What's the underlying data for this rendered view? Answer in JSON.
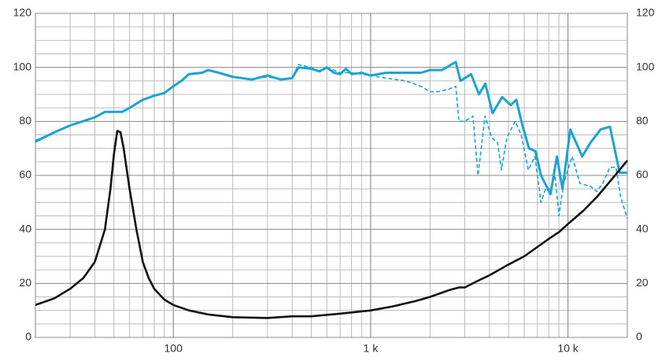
{
  "chart_data": {
    "type": "line",
    "xscale": "log",
    "grid": true,
    "xlim": [
      20,
      20000
    ],
    "xticks": [
      100,
      {
        "value": 1000,
        "label": "1 k"
      },
      {
        "value": 10000,
        "label": "10 k"
      }
    ],
    "ylim": [
      0,
      120
    ],
    "yticks": [
      0,
      20,
      40,
      60,
      80,
      100,
      120
    ],
    "y2lim": [
      0,
      120
    ],
    "y2ticks": [
      0,
      20,
      40,
      60,
      80,
      100,
      120
    ],
    "series": [
      {
        "color": "#1aa3d3",
        "style": "solid",
        "x": [
          20,
          25,
          30,
          40,
          45,
          50,
          55,
          60,
          70,
          80,
          90,
          100,
          110,
          120,
          140,
          150,
          170,
          200,
          250,
          300,
          350,
          400,
          430,
          500,
          550,
          600,
          650,
          700,
          750,
          800,
          900,
          1000,
          1200,
          1500,
          1800,
          2000,
          2300,
          2700,
          2850,
          3230,
          3540,
          3810,
          4150,
          4640,
          5130,
          5470,
          5900,
          6350,
          6840,
          7300,
          8150,
          8790,
          9380,
          10280,
          11800,
          12960,
          14630,
          16330,
          18280,
          20000
        ],
        "values": [
          72.5,
          76,
          78.5,
          81.5,
          83.5,
          83.5,
          83.5,
          85,
          88,
          89.5,
          90.5,
          93,
          95,
          97.5,
          98,
          99,
          98,
          96.5,
          95.5,
          97,
          95.5,
          96,
          100,
          99.5,
          98.5,
          100,
          98,
          97.5,
          99.5,
          97.5,
          98,
          97,
          98,
          98,
          98,
          99,
          99,
          102,
          95,
          97.5,
          90,
          94,
          83,
          89,
          86,
          88,
          78,
          70,
          69,
          60,
          53,
          67,
          55,
          77,
          67,
          72,
          77,
          78,
          61,
          61
        ]
      },
      {
        "color": "#1aa3d3",
        "style": "dashed",
        "x": [
          20,
          25,
          30,
          40,
          45,
          50,
          55,
          60,
          70,
          80,
          90,
          100,
          110,
          120,
          140,
          150,
          170,
          200,
          250,
          300,
          350,
          400,
          430,
          500,
          550,
          600,
          700,
          800,
          1000,
          1200,
          1500,
          1800,
          2000,
          2200,
          2500,
          2700,
          2800,
          3000,
          3300,
          3500,
          3800,
          4100,
          4400,
          4600,
          4900,
          5400,
          5800,
          6300,
          6800,
          7300,
          7700,
          8200,
          8600,
          9000,
          9500,
          10500,
          11500,
          13000,
          14000,
          15000,
          16300,
          17500,
          18500,
          20000
        ],
        "values": [
          73,
          76,
          78.5,
          81.5,
          83.5,
          83.5,
          83.5,
          85,
          88,
          89.5,
          90.5,
          93,
          95,
          97.5,
          98,
          99,
          98,
          96.5,
          95.5,
          96.5,
          95.5,
          96,
          101,
          100,
          98.5,
          100,
          98,
          98,
          97,
          96,
          95,
          93,
          91,
          91,
          92,
          93,
          80,
          80,
          82,
          60,
          82,
          74,
          72,
          62,
          74,
          80,
          75,
          62,
          67,
          50,
          55,
          55,
          60,
          45,
          57,
          67,
          57,
          56,
          54,
          57,
          63,
          63,
          52,
          44
        ]
      },
      {
        "color": "#111111",
        "style": "solid",
        "x": [
          20,
          25,
          30,
          35,
          40,
          45,
          48,
          50,
          52,
          54,
          56,
          60,
          65,
          70,
          75,
          80,
          90,
          100,
          120,
          150,
          200,
          300,
          400,
          500,
          700,
          1000,
          1300,
          1700,
          2000,
          2500,
          2800,
          3000,
          3500,
          4000,
          5000,
          6000,
          7000,
          8000,
          9000,
          10000,
          12000,
          14000,
          16000,
          18000,
          20000
        ],
        "values": [
          12,
          14.5,
          18,
          22,
          28,
          40,
          55,
          68,
          76.5,
          76,
          70,
          55,
          40,
          28,
          22,
          18,
          14,
          12,
          10,
          8.5,
          7.5,
          7.2,
          7.8,
          7.8,
          8.8,
          10,
          11.5,
          13.5,
          15,
          17.5,
          18.5,
          18.5,
          21,
          23,
          27,
          30,
          33.5,
          36.5,
          39,
          42,
          47,
          52,
          57,
          61.5,
          65.5
        ]
      }
    ]
  }
}
